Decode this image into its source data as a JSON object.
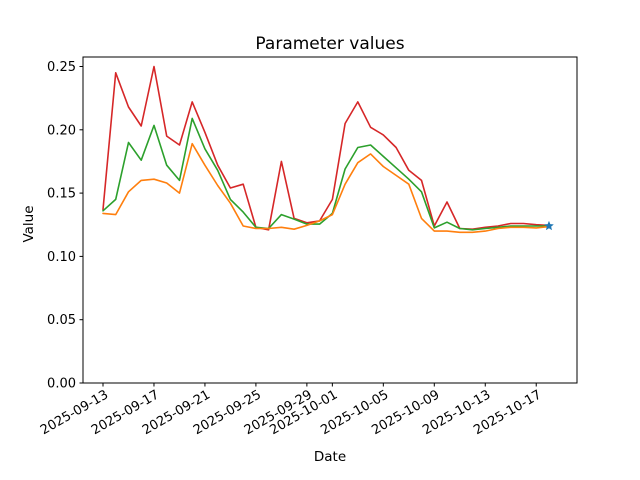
{
  "figure": {
    "background": "#ffffff",
    "spine_color": "#000000"
  },
  "chart_data": {
    "type": "line",
    "title": "Parameter values",
    "xlabel": "Date",
    "ylabel": "Value",
    "grid": false,
    "legend": null,
    "ylim": [
      0,
      0.2575
    ],
    "yticks": [
      0.0,
      0.05,
      0.1,
      0.15,
      0.2,
      0.25
    ],
    "ytick_labels": [
      "0.00",
      "0.05",
      "0.10",
      "0.15",
      "0.20",
      "0.25"
    ],
    "xtick_labels": [
      "2025-09-13",
      "2025-09-17",
      "2025-09-21",
      "2025-09-25",
      "2025-09-29",
      "2025-10-01",
      "2025-10-05",
      "2025-10-09",
      "2025-10-13",
      "2025-10-17"
    ],
    "x": [
      "2025-09-13",
      "2025-09-14",
      "2025-09-15",
      "2025-09-16",
      "2025-09-17",
      "2025-09-18",
      "2025-09-19",
      "2025-09-20",
      "2025-09-21",
      "2025-09-22",
      "2025-09-23",
      "2025-09-24",
      "2025-09-25",
      "2025-09-26",
      "2025-09-27",
      "2025-09-28",
      "2025-09-29",
      "2025-09-30",
      "2025-10-01",
      "2025-10-02",
      "2025-10-03",
      "2025-10-04",
      "2025-10-05",
      "2025-10-06",
      "2025-10-07",
      "2025-10-08",
      "2025-10-09",
      "2025-10-10",
      "2025-10-11",
      "2025-10-12",
      "2025-10-13",
      "2025-10-14",
      "2025-10-15",
      "2025-10-16",
      "2025-10-17",
      "2025-10-18"
    ],
    "series": [
      {
        "name": "red",
        "color": "#d62728",
        "values": [
          0.137,
          0.245,
          0.218,
          0.203,
          0.25,
          0.195,
          0.188,
          0.222,
          0.198,
          0.172,
          0.154,
          0.157,
          0.123,
          0.121,
          0.175,
          0.13,
          0.1265,
          0.128,
          0.145,
          0.205,
          0.222,
          0.202,
          0.196,
          0.186,
          0.168,
          0.16,
          0.124,
          0.143,
          0.122,
          0.1215,
          0.123,
          0.124,
          0.126,
          0.126,
          0.125,
          0.1245
        ]
      },
      {
        "name": "green",
        "color": "#2ca02c",
        "values": [
          0.136,
          0.145,
          0.19,
          0.176,
          0.2035,
          0.172,
          0.16,
          0.209,
          0.185,
          0.168,
          0.145,
          0.135,
          0.123,
          0.122,
          0.133,
          0.1295,
          0.1255,
          0.1255,
          0.134,
          0.169,
          0.186,
          0.188,
          0.179,
          0.17,
          0.161,
          0.151,
          0.1225,
          0.127,
          0.122,
          0.121,
          0.122,
          0.123,
          0.124,
          0.124,
          0.124,
          0.124
        ]
      },
      {
        "name": "orange",
        "color": "#ff7f0e",
        "values": [
          0.134,
          0.133,
          0.151,
          0.16,
          0.161,
          0.158,
          0.15,
          0.189,
          0.172,
          0.156,
          0.142,
          0.124,
          0.122,
          0.122,
          0.123,
          0.1215,
          0.1245,
          0.128,
          0.133,
          0.157,
          0.174,
          0.181,
          0.171,
          0.164,
          0.157,
          0.13,
          0.12,
          0.12,
          0.119,
          0.119,
          0.12,
          0.122,
          0.123,
          0.123,
          0.1225,
          0.1235
        ]
      }
    ],
    "end_marker": {
      "shape": "star",
      "color": "#1f77b4",
      "x": "2025-10-18",
      "value": 0.124
    }
  }
}
